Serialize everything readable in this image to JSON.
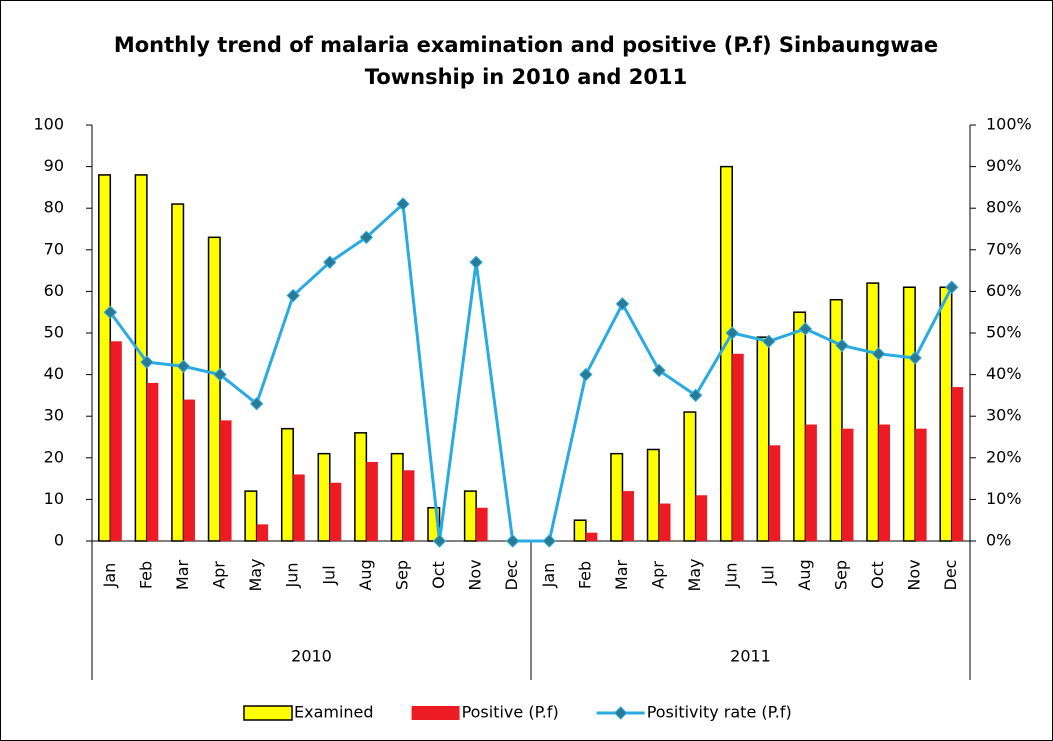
{
  "chart_data": {
    "type": "bar_line",
    "title": "Monthly trend of malaria examination and positive (P.f) Sinbaungwae Township in 2010 and 2011",
    "groups": [
      {
        "name": "2010",
        "categories": [
          "Jan",
          "Feb",
          "Mar",
          "Apr",
          "May",
          "Jun",
          "Jul",
          "Aug",
          "Sep",
          "Oct",
          "Nov",
          "Dec"
        ]
      },
      {
        "name": "2011",
        "categories": [
          "Jan",
          "Feb",
          "Mar",
          "Apr",
          "May",
          "Jun",
          "Jul",
          "Aug",
          "Sep",
          "Oct",
          "Nov",
          "Dec"
        ]
      }
    ],
    "series": [
      {
        "name": "Examined",
        "type": "bar",
        "color": "#ffff00",
        "values": [
          88,
          88,
          81,
          73,
          12,
          27,
          21,
          26,
          21,
          8,
          12,
          0,
          0,
          5,
          21,
          22,
          31,
          90,
          49,
          55,
          58,
          62,
          61,
          61
        ]
      },
      {
        "name": "Positive (P.f)",
        "type": "bar",
        "color": "#ed1c24",
        "values": [
          48,
          38,
          34,
          29,
          4,
          16,
          14,
          19,
          17,
          0,
          8,
          0,
          0,
          2,
          12,
          9,
          11,
          45,
          23,
          28,
          27,
          28,
          27,
          37
        ]
      },
      {
        "name": "Positivity rate (P.f)",
        "type": "line",
        "axis": "y2",
        "color": "#29abe2",
        "marker_color": "#2b7a94",
        "values": [
          55,
          43,
          42,
          40,
          33,
          59,
          67,
          73,
          81,
          0,
          67,
          0,
          0,
          40,
          57,
          41,
          35,
          50,
          48,
          51,
          47,
          45,
          44,
          61
        ]
      }
    ],
    "ylim": [
      0,
      100
    ],
    "yticks": [
      0,
      10,
      20,
      30,
      40,
      50,
      60,
      70,
      80,
      90,
      100
    ],
    "y2lim": [
      0,
      100
    ],
    "y2ticks": [
      {
        "value": 0,
        "label": "0%"
      },
      {
        "value": 10,
        "label": "10%"
      },
      {
        "value": 20,
        "label": "20%"
      },
      {
        "value": 30,
        "label": "30%"
      },
      {
        "value": 40,
        "label": "40%"
      },
      {
        "value": 50,
        "label": "50%"
      },
      {
        "value": 60,
        "label": "60%"
      },
      {
        "value": 70,
        "label": "70%"
      },
      {
        "value": 80,
        "label": "80%"
      },
      {
        "value": 90,
        "label": "90%"
      },
      {
        "value": 100,
        "label": "100%"
      }
    ],
    "legend": "bottom",
    "grid": false
  }
}
